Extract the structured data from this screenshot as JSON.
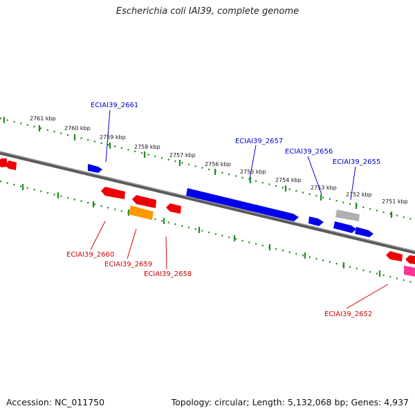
{
  "title": "Escherichia coli IAI39, complete genome",
  "footer": {
    "accession": "Accession: NC_011750",
    "stats": "Topology: circular; Length: 5,132,068 bp; Genes: 4,937"
  },
  "colors": {
    "backbone": "#808080",
    "scale_dots": "#228B22",
    "forward_gene": "#0000ee",
    "reverse_gene": "#ee0000",
    "orange_gene": "#ff9900",
    "gray_gene": "#b0b0b0",
    "pink_gene": "#ff3399",
    "forward_label": "#0000cc",
    "reverse_label": "#cc0000"
  },
  "scale": {
    "unit": "kbp",
    "labels": [
      "2761 kbp",
      "2760 kbp",
      "2759 kbp",
      "2758 kbp",
      "2757 kbp",
      "2756 kbp",
      "2755 kbp",
      "2754 kbp",
      "2753 kbp",
      "2752 kbp",
      "2751 kbp"
    ]
  },
  "forward_labels": [
    "ECIAI39_2661",
    "ECIAI39_2657",
    "ECIAI39_2656",
    "ECIAI39_2655"
  ],
  "reverse_labels": [
    "ECIAI39_2660",
    "ECIAI39_2659",
    "ECIAI39_2658",
    "ECIAI39_2652"
  ]
}
